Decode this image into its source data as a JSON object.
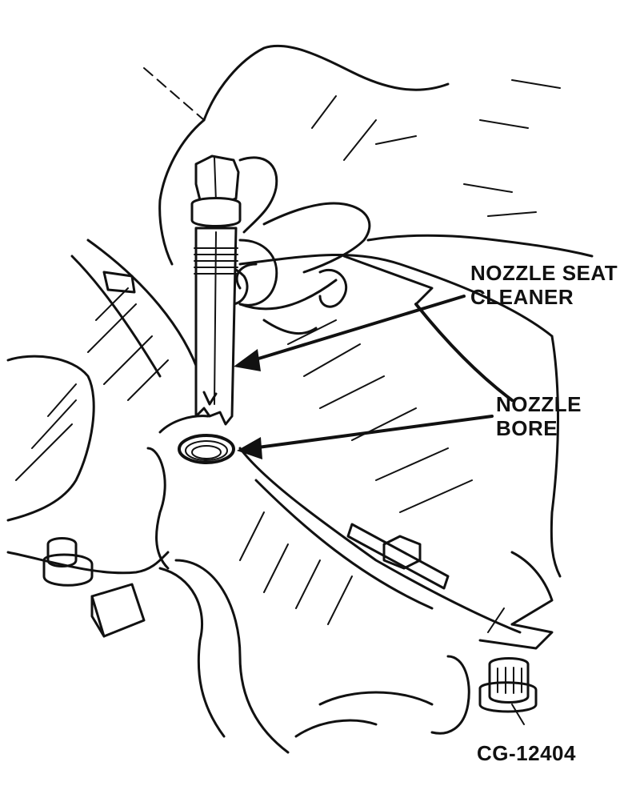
{
  "figure": {
    "labels": {
      "nozzle_seat_cleaner_line1": "NOZZLE SEAT",
      "nozzle_seat_cleaner_line2": "CLEANER",
      "nozzle_bore_line1": "NOZZLE",
      "nozzle_bore_line2": "BORE",
      "figure_id": "CG-12404"
    }
  }
}
